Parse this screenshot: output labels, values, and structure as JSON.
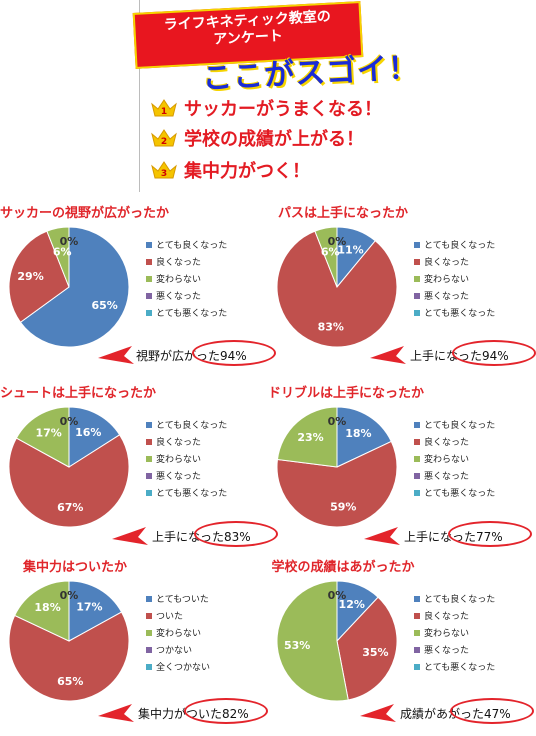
{
  "header": {
    "banner_line1": "ライフキネティック教室の",
    "banner_line2": "アンケート",
    "headline": "ここがスゴイ！",
    "ranks": [
      {
        "num": "1",
        "text": "サッカーがうまくなる！"
      },
      {
        "num": "2",
        "text": "学校の成績が上がる！"
      },
      {
        "num": "3",
        "text": "集中力がつく！"
      }
    ]
  },
  "colors": {
    "very_good": "#4f81bd",
    "good": "#c0504d",
    "same": "#9bbb59",
    "bad": "#8064a2",
    "very_bad": "#4bacc6",
    "accent": "#e3242b"
  },
  "chart_data": [
    {
      "type": "pie",
      "title": "サッカーの視野が広がったか",
      "categories": [
        "とても良くなった",
        "良くなった",
        "変わらない",
        "悪くなった",
        "とても悪くなった"
      ],
      "values": [
        65,
        29,
        6,
        0,
        0
      ],
      "labels": [
        "65%",
        "29%",
        "6%",
        "0%"
      ],
      "callout": "視野が広がった94%"
    },
    {
      "type": "pie",
      "title": "パスは上手になったか",
      "categories": [
        "とても良くなった",
        "良くなった",
        "変わらない",
        "悪くなった",
        "とても悪くなった"
      ],
      "values": [
        11,
        83,
        6,
        0,
        0
      ],
      "labels": [
        "11%",
        "83%",
        "6%",
        "0%"
      ],
      "callout": "上手になった94%"
    },
    {
      "type": "pie",
      "title": "シュートは上手になったか",
      "categories": [
        "とても良くなった",
        "良くなった",
        "変わらない",
        "悪くなった",
        "とても悪くなった"
      ],
      "values": [
        16,
        67,
        17,
        0,
        0
      ],
      "labels": [
        "16%",
        "67%",
        "17%",
        "0%"
      ],
      "callout": "上手になった83%"
    },
    {
      "type": "pie",
      "title": "ドリブルは上手になったか",
      "categories": [
        "とても良くなった",
        "良くなった",
        "変わらない",
        "悪くなった",
        "とても悪くなった"
      ],
      "values": [
        18,
        59,
        23,
        0,
        0
      ],
      "labels": [
        "18%",
        "59%",
        "23%",
        "0%"
      ],
      "callout": "上手になった77%"
    },
    {
      "type": "pie",
      "title": "集中力はついたか",
      "categories": [
        "とてもついた",
        "ついた",
        "変わらない",
        "つかない",
        "全くつかない"
      ],
      "values": [
        17,
        65,
        18,
        0,
        0
      ],
      "labels": [
        "17%",
        "65%",
        "18%",
        "0%"
      ],
      "callout": "集中力がついた82%"
    },
    {
      "type": "pie",
      "title": "学校の成績はあがったか",
      "categories": [
        "とても良くなった",
        "良くなった",
        "変わらない",
        "悪くなった",
        "とても悪くなった"
      ],
      "values": [
        12,
        35,
        53,
        0,
        0
      ],
      "labels": [
        "12%",
        "35%",
        "53%",
        "0%"
      ],
      "callout": "成績があがった47%"
    }
  ]
}
